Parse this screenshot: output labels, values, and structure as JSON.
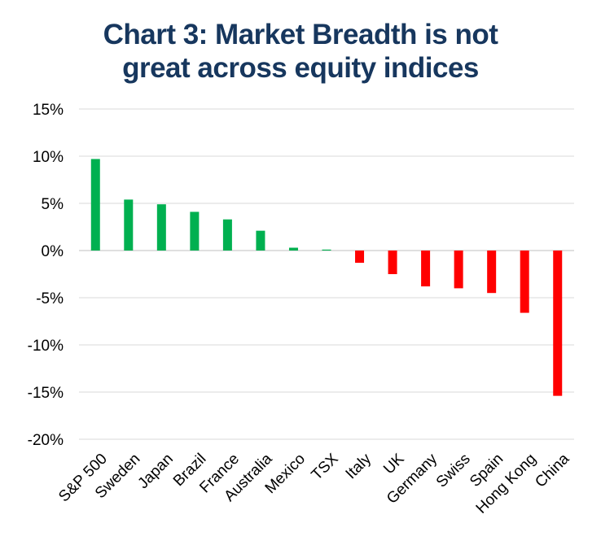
{
  "title_line1": "Chart 3: Market Breadth is not",
  "title_line2": "great across equity indices",
  "chart_data": {
    "type": "bar",
    "title": "Chart 3: Market Breadth is not great across equity indices",
    "xlabel": "",
    "ylabel": "",
    "categories": [
      "S&P 500",
      "Sweden",
      "Japan",
      "Brazil",
      "France",
      "Australia",
      "Mexico",
      "TSX",
      "Italy",
      "UK",
      "Germany",
      "Swiss",
      "Spain",
      "Hong Kong",
      "China"
    ],
    "values": [
      9.7,
      5.4,
      4.9,
      4.1,
      3.3,
      2.1,
      0.3,
      0.1,
      -1.3,
      -2.5,
      -3.8,
      -4.0,
      -4.5,
      -6.6,
      -15.4
    ],
    "ylim": [
      -20,
      15
    ],
    "yticks": [
      15,
      10,
      5,
      0,
      -5,
      -10,
      -15,
      -20
    ],
    "ytick_labels": [
      "15%",
      "10%",
      "5%",
      "0%",
      "-5%",
      "-10%",
      "-15%",
      "-20%"
    ],
    "grid": true,
    "colors": {
      "positive": "#00b050",
      "negative": "#ff0000",
      "grid": "#d9d9d9",
      "axis": "#bfbfbf",
      "title": "#17375e"
    }
  }
}
